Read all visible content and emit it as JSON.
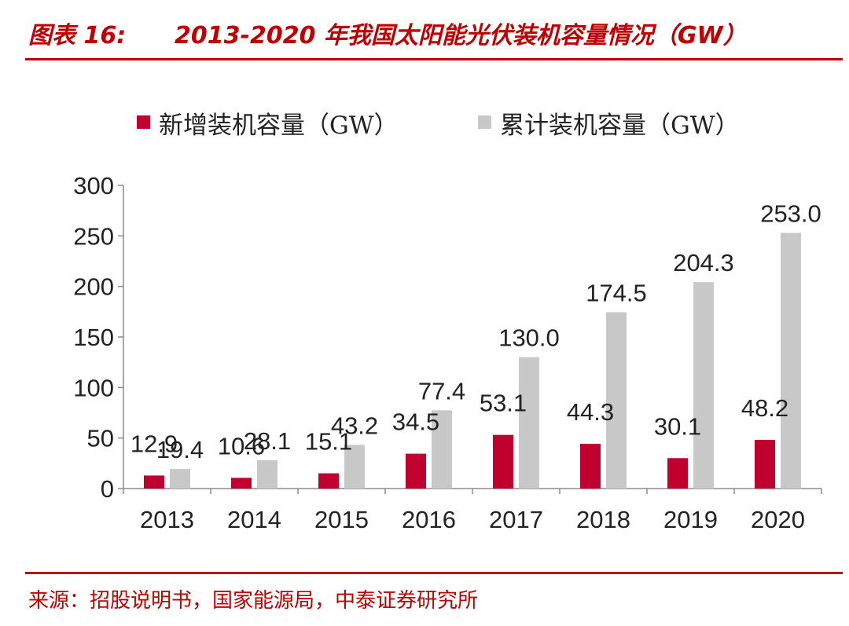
{
  "header": {
    "label": "图表 16:",
    "title": "2013-2020 年我国太阳能光伏装机容量情况（GW）"
  },
  "legend": [
    {
      "name": "新增装机容量（GW）",
      "color": "#C0002F"
    },
    {
      "name": "累计装机容量（GW）",
      "color": "#C8C8C8"
    }
  ],
  "footer": {
    "source": "来源：招股说明书，国家能源局，中泰证券研究所"
  },
  "colors": {
    "accent": "#C00000",
    "new_capacity": "#C0002F",
    "cumulative_capacity": "#C8C8C8"
  },
  "chart_data": {
    "type": "bar",
    "title": "2013-2020 年我国太阳能光伏装机容量情况（GW）",
    "categories": [
      "2013",
      "2014",
      "2015",
      "2016",
      "2017",
      "2018",
      "2019",
      "2020"
    ],
    "series": [
      {
        "name": "新增装机容量（GW）",
        "values": [
          12.9,
          10.6,
          15.1,
          34.5,
          53.1,
          44.3,
          30.1,
          48.2
        ],
        "labels": [
          "12.9",
          "10.6",
          "15.1",
          "34.5",
          "53.1",
          "44.3",
          "30.1",
          "48.2"
        ]
      },
      {
        "name": "累计装机容量（GW）",
        "values": [
          19.4,
          28.1,
          43.2,
          77.4,
          130.0,
          174.5,
          204.3,
          253.0
        ],
        "labels": [
          "19.4",
          "28.1",
          "43.2",
          "77.4",
          "130.0",
          "174.5",
          "204.3",
          "253.0"
        ]
      }
    ],
    "ylim": [
      0,
      300
    ],
    "yticks": [
      0,
      50,
      100,
      150,
      200,
      250,
      300
    ],
    "xlabel": "",
    "ylabel": "",
    "grid": false,
    "legend_position": "top"
  }
}
